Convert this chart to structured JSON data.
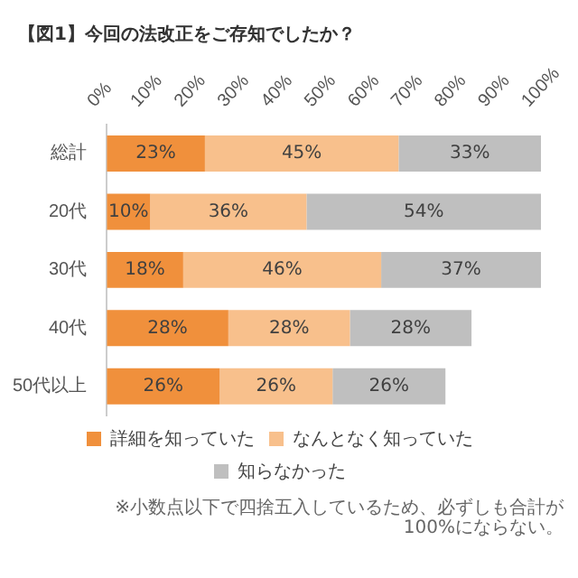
{
  "chart_data": {
    "type": "bar",
    "orientation": "horizontal",
    "stacked": true,
    "title": "【図1】今回の法改正をご存知でしたか？",
    "categories": [
      "総計",
      "20代",
      "30代",
      "40代",
      "50代以上"
    ],
    "series": [
      {
        "name": "詳細を知っていた",
        "color": "#f0903c",
        "values": [
          22.6,
          10,
          17.6,
          28,
          26
        ],
        "value_labels": [
          "23%",
          "10%",
          "18%",
          "28%",
          "26%"
        ]
      },
      {
        "name": "なんとなく知っていた",
        "color": "#f8c08c",
        "values": [
          44.6,
          36,
          45.6,
          28,
          26
        ],
        "value_labels": [
          "45%",
          "36%",
          "46%",
          "28%",
          "26%"
        ]
      },
      {
        "name": "知らなかった",
        "color": "#bfbfbf",
        "values": [
          32.8,
          54,
          36.8,
          28,
          26
        ],
        "value_labels": [
          "33%",
          "54%",
          "37%",
          "28%",
          "26%"
        ]
      }
    ],
    "xlim": [
      0,
      100
    ],
    "xticks": [
      {
        "value": 0,
        "label": "0%"
      },
      {
        "value": 10,
        "label": "10%"
      },
      {
        "value": 20,
        "label": "20%"
      },
      {
        "value": 30,
        "label": "30%"
      },
      {
        "value": 40,
        "label": "40%"
      },
      {
        "value": 50,
        "label": "50%"
      },
      {
        "value": 60,
        "label": "60%"
      },
      {
        "value": 70,
        "label": "70%"
      },
      {
        "value": 80,
        "label": "80%"
      },
      {
        "value": 90,
        "label": "90%"
      },
      {
        "value": 100,
        "label": "100%"
      }
    ],
    "grid": false,
    "legend": "bottom",
    "annotations": [
      "※小数点以下で四捨五入しているため、必ずしも合計が100%にならない。"
    ]
  }
}
